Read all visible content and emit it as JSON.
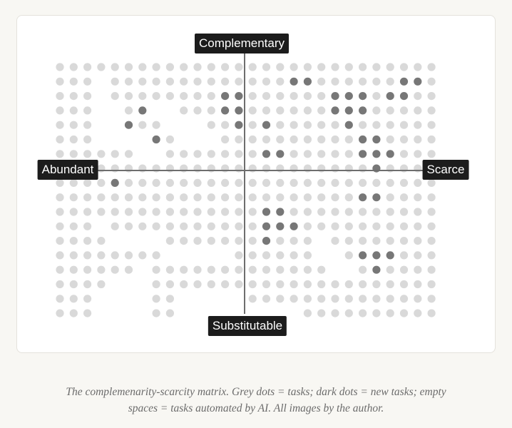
{
  "figure": {
    "labels": {
      "top": "Complementary",
      "bottom": "Substitutable",
      "left": "Abundant",
      "right": "Scarce"
    },
    "colors": {
      "grey_dot": "#d9d9d9",
      "dark_dot": "#777777",
      "axis": "#6e6e6e",
      "label_bg": "#1c1c1c",
      "label_text": "#ffffff"
    },
    "grid": {
      "columns": 28,
      "rows": 18
    },
    "empty_cells": [
      [
        3,
        1
      ],
      [
        3,
        2
      ],
      [
        3,
        3
      ],
      [
        3,
        4
      ],
      [
        3,
        5
      ],
      [
        4,
        3
      ],
      [
        4,
        4
      ],
      [
        4,
        5
      ],
      [
        5,
        4
      ],
      [
        5,
        5
      ],
      [
        6,
        5
      ],
      [
        6,
        6
      ],
      [
        7,
        6
      ],
      [
        6,
        3
      ],
      [
        7,
        3
      ],
      [
        8,
        3
      ],
      [
        8,
        4
      ],
      [
        9,
        4
      ],
      [
        9,
        5
      ],
      [
        10,
        4
      ],
      [
        10,
        5
      ],
      [
        11,
        5
      ],
      [
        3,
        11
      ],
      [
        4,
        12
      ],
      [
        5,
        12
      ],
      [
        6,
        12
      ],
      [
        7,
        12
      ],
      [
        8,
        13
      ],
      [
        9,
        13
      ],
      [
        10,
        13
      ],
      [
        11,
        13
      ],
      [
        12,
        13
      ],
      [
        6,
        14
      ],
      [
        6,
        15
      ],
      [
        6,
        16
      ],
      [
        6,
        17
      ],
      [
        5,
        15
      ],
      [
        5,
        16
      ],
      [
        5,
        17
      ],
      [
        4,
        16
      ],
      [
        4,
        17
      ],
      [
        4,
        15
      ],
      [
        3,
        16
      ],
      [
        3,
        17
      ],
      [
        9,
        16
      ],
      [
        10,
        16
      ],
      [
        11,
        16
      ],
      [
        12,
        16
      ],
      [
        9,
        17
      ],
      [
        10,
        17
      ],
      [
        11,
        17
      ],
      [
        12,
        17
      ],
      [
        13,
        16
      ],
      [
        13,
        17
      ],
      [
        14,
        17
      ],
      [
        15,
        17
      ],
      [
        16,
        17
      ],
      [
        17,
        17
      ],
      [
        19,
        12
      ],
      [
        19,
        13
      ],
      [
        20,
        13
      ],
      [
        21,
        14
      ],
      [
        20,
        14
      ]
    ],
    "dark_dots": [
      [
        5,
        4
      ],
      [
        6,
        3
      ],
      [
        7,
        5
      ],
      [
        4,
        8
      ],
      [
        12,
        2
      ],
      [
        13,
        2
      ],
      [
        12,
        3
      ],
      [
        13,
        3
      ],
      [
        13,
        4
      ],
      [
        15,
        4
      ],
      [
        16,
        6
      ],
      [
        15,
        6
      ],
      [
        17,
        1
      ],
      [
        18,
        1
      ],
      [
        20,
        2
      ],
      [
        20,
        3
      ],
      [
        21,
        2
      ],
      [
        21,
        3
      ],
      [
        22,
        3
      ],
      [
        22,
        2
      ],
      [
        21,
        4
      ],
      [
        24,
        2
      ],
      [
        25,
        1
      ],
      [
        25,
        2
      ],
      [
        26,
        1
      ],
      [
        22,
        5
      ],
      [
        23,
        5
      ],
      [
        23,
        6
      ],
      [
        22,
        6
      ],
      [
        23,
        7
      ],
      [
        24,
        6
      ],
      [
        22,
        9
      ],
      [
        23,
        9
      ],
      [
        15,
        10
      ],
      [
        16,
        10
      ],
      [
        15,
        11
      ],
      [
        16,
        11
      ],
      [
        17,
        11
      ],
      [
        15,
        12
      ],
      [
        22,
        13
      ],
      [
        23,
        13
      ],
      [
        24,
        13
      ],
      [
        23,
        14
      ]
    ]
  },
  "caption": {
    "line1": "The complemenarity-scarcity matrix. Grey dots = tasks; dark dots = new tasks; empty",
    "line2": "spaces = tasks automated by AI. All images by the author."
  }
}
